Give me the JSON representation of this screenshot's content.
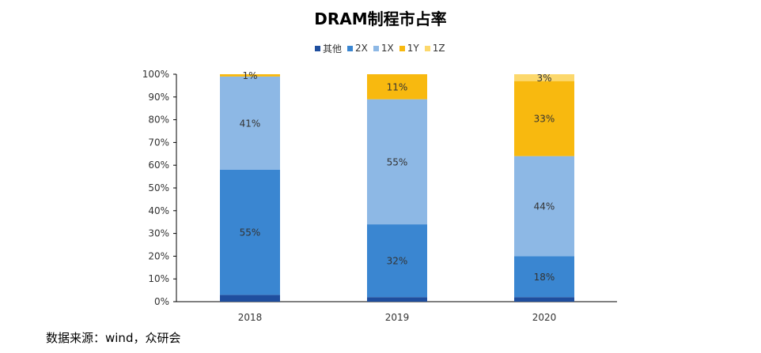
{
  "title": "DRAM制程市占率",
  "source": "数据来源：wind，众研会",
  "chart_data": {
    "type": "bar",
    "stacked": true,
    "categories": [
      "2018",
      "2019",
      "2020"
    ],
    "ylim": [
      0,
      100
    ],
    "yticks": [
      "0%",
      "10%",
      "20%",
      "30%",
      "40%",
      "50%",
      "60%",
      "70%",
      "80%",
      "90%",
      "100%"
    ],
    "legend_position": "top",
    "series": [
      {
        "name": "其他",
        "color": "#1f4e9e",
        "values": [
          3,
          2,
          2
        ],
        "labels": [
          "",
          "",
          ""
        ]
      },
      {
        "name": "2X",
        "color": "#3a86d1",
        "values": [
          55,
          32,
          18
        ],
        "labels": [
          "55%",
          "32%",
          "18%"
        ]
      },
      {
        "name": "1X",
        "color": "#8db8e5",
        "values": [
          41,
          55,
          44
        ],
        "labels": [
          "41%",
          "55%",
          "44%"
        ]
      },
      {
        "name": "1Y",
        "color": "#f8b90f",
        "values": [
          1,
          11,
          33
        ],
        "labels": [
          "1%",
          "11%",
          "33%"
        ]
      },
      {
        "name": "1Z",
        "color": "#fcd86c",
        "values": [
          0,
          0,
          3
        ],
        "labels": [
          "",
          "",
          "3%"
        ]
      }
    ]
  }
}
